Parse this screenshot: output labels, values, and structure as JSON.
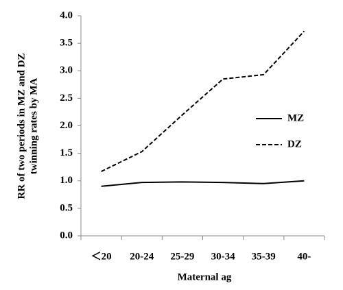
{
  "chart_data": {
    "type": "line",
    "xlabel": "Maternal ag",
    "ylabel": [
      "RR of two periods in MZ and DZ",
      "twinning rates by MA"
    ],
    "categories": [
      "＜20",
      "20‐24",
      "25‐29",
      "30‐34",
      "35‐39",
      "40‐"
    ],
    "series": [
      {
        "name": "MZ",
        "color": "#000000",
        "dash": "solid",
        "values": [
          0.9,
          0.97,
          0.98,
          0.97,
          0.95,
          1.0
        ]
      },
      {
        "name": "DZ",
        "color": "#000000",
        "dash": "dashed",
        "values": [
          1.17,
          1.53,
          2.2,
          2.85,
          2.93,
          3.72
        ]
      }
    ],
    "ylim": [
      0,
      4
    ],
    "yticks": [
      {
        "value": 0,
        "label": "0.0"
      },
      0.5,
      {
        "value": 1,
        "label": "1.0"
      },
      1.5,
      {
        "value": 2,
        "label": "2.0"
      },
      2.5,
      {
        "value": 3,
        "label": "3.0"
      },
      3.5,
      {
        "value": 4,
        "label": "4.0"
      }
    ],
    "legend": "right"
  }
}
